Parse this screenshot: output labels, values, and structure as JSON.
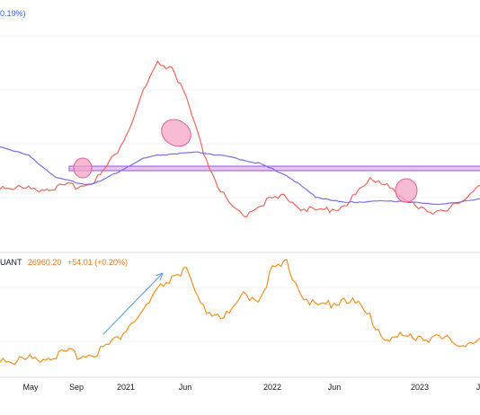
{
  "header_top": {
    "change": "0.19%)"
  },
  "header_bottom": {
    "symbol": "UANT",
    "value": "26960.20",
    "change": "+54.01 (+0.20%)"
  },
  "colors": {
    "red_line": "#f0685a",
    "blue_line": "#7a6ee6",
    "orange_line": "#f5901f",
    "arrow": "#5b9bd5",
    "highlight": "#f4a6c6",
    "band_fill": "#e3c6f2",
    "band_stroke": "#9b51e0"
  },
  "chart_data": [
    {
      "type": "line",
      "panel": "top",
      "x_ticks": [
        "May",
        "Sep",
        "2021",
        "Jun",
        "2022",
        "Jun",
        "2023",
        "J"
      ],
      "series": [
        {
          "color": "red",
          "points": [
            [
              "2020-03",
              0.18
            ],
            [
              "2020-05",
              0.16
            ],
            [
              "2020-07",
              0.17
            ],
            [
              "2020-09",
              0.19
            ],
            [
              "2020-10",
              0.25
            ],
            [
              "2020-11",
              0.38
            ],
            [
              "2020-12",
              0.55
            ],
            [
              "2021-01",
              0.8
            ],
            [
              "2021-02",
              0.98
            ],
            [
              "2021-03",
              0.96
            ],
            [
              "2021-04",
              0.75
            ],
            [
              "2021-05",
              0.45
            ],
            [
              "2021-06",
              0.22
            ],
            [
              "2021-07",
              0.05
            ],
            [
              "2021-08",
              -0.02
            ],
            [
              "2021-09",
              0.06
            ],
            [
              "2021-10",
              0.09
            ],
            [
              "2021-11",
              0.11
            ],
            [
              "2021-12",
              0.04
            ],
            [
              "2022-01",
              0.01
            ],
            [
              "2022-02",
              0.03
            ],
            [
              "2022-03",
              0.05
            ],
            [
              "2022-04",
              0.14
            ],
            [
              "2022-05",
              0.23
            ],
            [
              "2022-06",
              0.2
            ],
            [
              "2022-07",
              0.09
            ],
            [
              "2022-08",
              0.06
            ],
            [
              "2022-09",
              0.02
            ],
            [
              "2022-10",
              0.0
            ],
            [
              "2022-11",
              0.07
            ],
            [
              "2022-12",
              0.16
            ],
            [
              "2023-01",
              0.2
            ],
            [
              "2023-02",
              0.3
            ],
            [
              "2023-03",
              0.4
            ],
            [
              "2023-04",
              0.46
            ],
            [
              "2023-05",
              0.49
            ],
            [
              "2023-06",
              0.5
            ]
          ]
        },
        {
          "color": "blue",
          "points": [
            [
              "2020-03",
              0.45
            ],
            [
              "2020-05",
              0.39
            ],
            [
              "2020-07",
              0.24
            ],
            [
              "2020-09",
              0.2
            ],
            [
              "2020-10",
              0.22
            ],
            [
              "2020-11",
              0.27
            ],
            [
              "2020-12",
              0.32
            ],
            [
              "2021-01",
              0.37
            ],
            [
              "2021-02",
              0.39
            ],
            [
              "2021-03",
              0.4
            ],
            [
              "2021-05",
              0.41
            ],
            [
              "2021-07",
              0.38
            ],
            [
              "2021-09",
              0.34
            ],
            [
              "2021-11",
              0.26
            ],
            [
              "2022-01",
              0.12
            ],
            [
              "2022-03",
              0.08
            ],
            [
              "2022-05",
              0.09
            ],
            [
              "2022-07",
              0.09
            ],
            [
              "2022-09",
              0.07
            ],
            [
              "2022-11",
              0.08
            ],
            [
              "2023-01",
              0.12
            ],
            [
              "2023-03",
              0.16
            ],
            [
              "2023-05",
              0.18
            ],
            [
              "2023-06",
              0.18
            ]
          ]
        }
      ]
    },
    {
      "type": "line",
      "panel": "bottom",
      "series": [
        {
          "color": "orange",
          "points": [
            [
              "2020-03",
              9200
            ],
            [
              "2020-04",
              7000
            ],
            [
              "2020-06",
              9400
            ],
            [
              "2020-08",
              11500
            ],
            [
              "2020-09",
              10600
            ],
            [
              "2020-10",
              13800
            ],
            [
              "2020-11",
              18500
            ],
            [
              "2020-12",
              28000
            ],
            [
              "2021-01",
              36000
            ],
            [
              "2021-02",
              48000
            ],
            [
              "2021-03",
              57000
            ],
            [
              "2021-04",
              60000
            ],
            [
              "2021-05",
              38000
            ],
            [
              "2021-06",
              35000
            ],
            [
              "2021-07",
              33000
            ],
            [
              "2021-08",
              46000
            ],
            [
              "2021-09",
              44000
            ],
            [
              "2021-10",
              60000
            ],
            [
              "2021-11",
              64000
            ],
            [
              "2021-12",
              48000
            ],
            [
              "2022-01",
              38000
            ],
            [
              "2022-03",
              44000
            ],
            [
              "2022-04",
              40000
            ],
            [
              "2022-05",
              30000
            ],
            [
              "2022-06",
              20000
            ],
            [
              "2022-08",
              22000
            ],
            [
              "2022-10",
              19500
            ],
            [
              "2022-12",
              16800
            ],
            [
              "2023-01",
              21000
            ],
            [
              "2023-03",
              28000
            ],
            [
              "2023-04",
              30000
            ],
            [
              "2023-05",
              27000
            ],
            [
              "2023-06",
              26960
            ]
          ]
        }
      ]
    }
  ]
}
